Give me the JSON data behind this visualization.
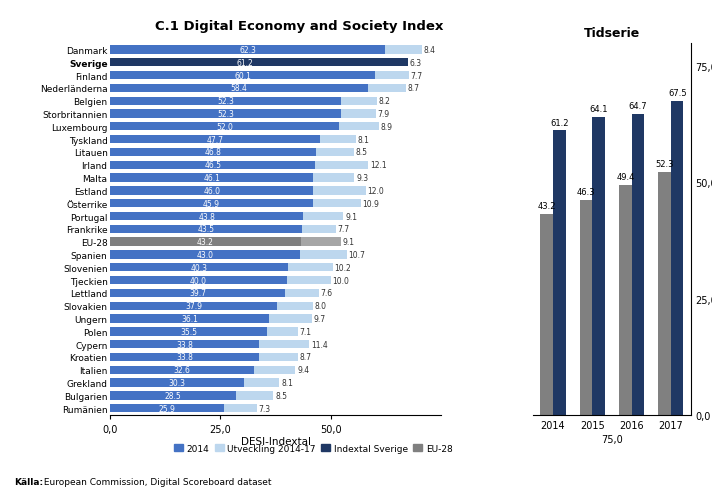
{
  "title": "C.1 Digital Economy and Society Index",
  "countries": [
    "Danmark",
    "Sverige",
    "Finland",
    "Nederländerna",
    "Belgien",
    "Storbritannien",
    "Luxembourg",
    "Tyskland",
    "Litauen",
    "Irland",
    "Malta",
    "Estland",
    "Österrike",
    "Portugal",
    "Frankrike",
    "EU-28",
    "Spanien",
    "Slovenien",
    "Tjeckien",
    "Lettland",
    "Slovakien",
    "Ungern",
    "Polen",
    "Cypern",
    "Kroatien",
    "Italien",
    "Grekland",
    "Bulgarien",
    "Rumänien"
  ],
  "desi_2014": [
    62.3,
    61.2,
    60.1,
    58.4,
    52.3,
    52.3,
    52.0,
    47.7,
    46.8,
    46.5,
    46.1,
    46.0,
    45.9,
    43.8,
    43.5,
    43.2,
    43.0,
    40.3,
    40.0,
    39.7,
    37.9,
    36.1,
    35.5,
    33.8,
    33.8,
    32.6,
    30.3,
    28.5,
    25.9
  ],
  "utveckling": [
    8.4,
    6.3,
    7.7,
    8.7,
    8.2,
    7.9,
    8.9,
    8.1,
    8.5,
    12.1,
    9.3,
    12.0,
    10.9,
    9.1,
    7.7,
    9.1,
    10.7,
    10.2,
    10.0,
    7.6,
    8.0,
    9.7,
    7.1,
    11.4,
    8.7,
    9.4,
    8.1,
    8.5,
    7.3
  ],
  "is_sverige": [
    false,
    true,
    false,
    false,
    false,
    false,
    false,
    false,
    false,
    false,
    false,
    false,
    false,
    false,
    false,
    false,
    false,
    false,
    false,
    false,
    false,
    false,
    false,
    false,
    false,
    false,
    false,
    false,
    false
  ],
  "is_eu28": [
    false,
    false,
    false,
    false,
    false,
    false,
    false,
    false,
    false,
    false,
    false,
    false,
    false,
    false,
    false,
    true,
    false,
    false,
    false,
    false,
    false,
    false,
    false,
    false,
    false,
    false,
    false,
    false,
    false
  ],
  "color_2014_normal": "#4472C4",
  "color_2014_sverige": "#1F3864",
  "color_2014_eu28": "#7F7F7F",
  "color_utvecling_eu28": "#A6A6A6",
  "color_utveckling": "#BDD7EE",
  "tidserie_years": [
    "2014",
    "2015",
    "2016",
    "2017"
  ],
  "tidserie_sverige": [
    61.2,
    64.1,
    64.7,
    67.5
  ],
  "tidserie_eu28": [
    43.2,
    46.3,
    49.4,
    52.3
  ],
  "tidserie_color_sverige": "#1F3864",
  "tidserie_color_eu28": "#808080",
  "xlabel": "DESI-Indextal",
  "legend_2014": "2014",
  "legend_utv": "Utveckling 2014-17",
  "legend_sverige": "Indextal Sverige",
  "legend_eu28": "EU-28",
  "tidserie_title": "Tidserie",
  "footer_bold": "Källa:",
  "footer_rest": " European Commission, Digital Scoreboard dataset",
  "bar_height": 0.65,
  "xlim_main": 75,
  "xticks_main": [
    0,
    25,
    50
  ],
  "xticklabels_main": [
    "0,0",
    "25,0",
    "50,0"
  ]
}
